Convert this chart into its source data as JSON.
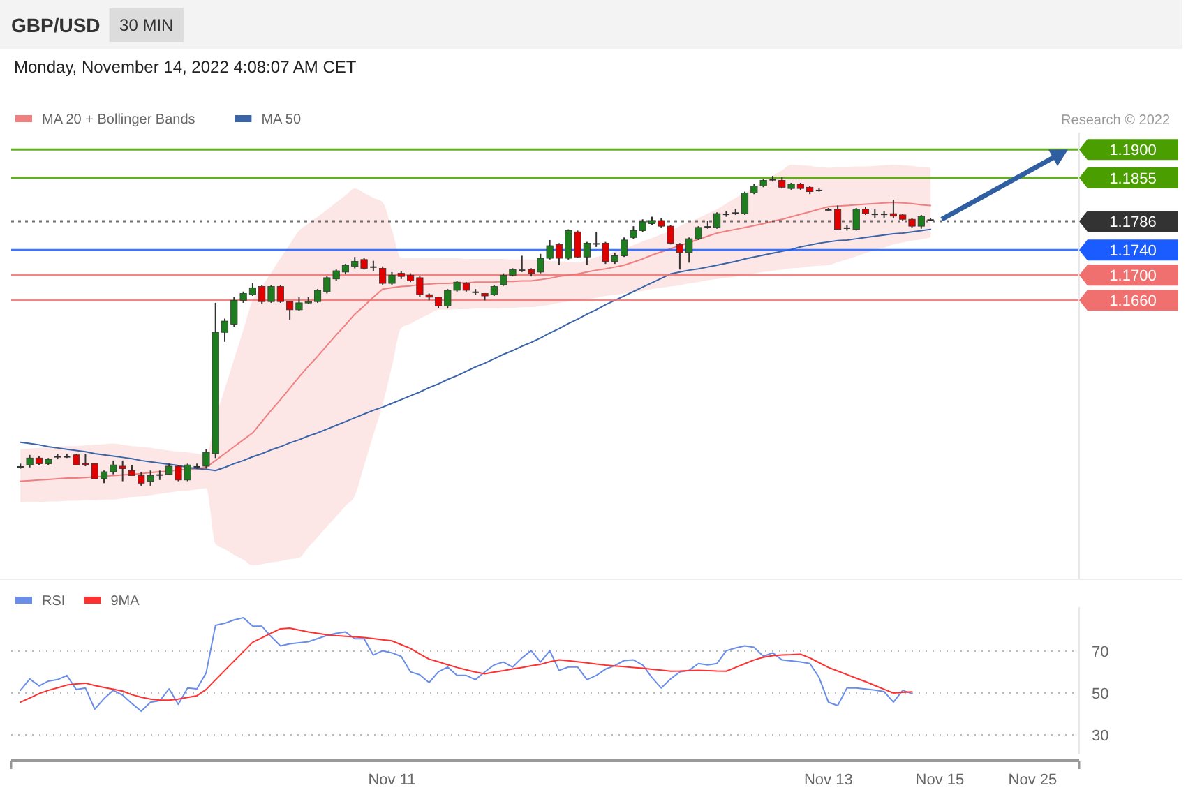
{
  "chart_data": [
    {
      "type": "candlestick",
      "title": "GBP/USD",
      "subtitle": "30 MIN",
      "annotations": [
        "Monday, November 14, 2022 4:08:07 AM CET",
        "Research © 2022"
      ],
      "legend": "top left",
      "tick_labels": "y",
      "ylim": [
        1.1216,
        1.1927
      ],
      "yticks": [
        {
          "value": 1.19,
          "label": "1.1900"
        },
        {
          "value": 1.1855,
          "label": "1.1855"
        },
        {
          "value": 1.1786,
          "label": "1.1786"
        },
        {
          "value": 1.174,
          "label": "1.1740"
        },
        {
          "value": 1.17,
          "label": "1.1700"
        },
        {
          "value": 1.166,
          "label": "1.1660"
        }
      ],
      "categories": [
        null,
        null,
        null,
        null,
        null,
        null,
        null,
        null,
        null,
        null,
        null,
        null,
        null,
        null,
        null,
        null,
        null,
        null,
        null,
        null,
        null,
        null,
        null,
        null,
        null,
        null,
        null,
        null,
        null,
        null,
        null,
        null,
        null,
        null,
        null,
        null,
        null,
        null,
        null,
        null,
        null,
        null,
        null,
        null,
        null,
        null,
        null,
        null,
        null,
        null,
        null,
        null,
        null,
        null,
        null,
        null,
        null,
        null,
        null,
        null,
        null,
        null,
        null,
        null,
        null,
        null,
        null,
        null,
        null,
        null,
        null,
        null,
        null,
        null,
        null,
        null,
        null,
        null,
        null,
        null,
        null,
        null,
        null,
        null,
        null,
        null,
        null,
        null,
        null,
        null,
        null,
        null,
        null,
        null,
        null,
        null,
        null,
        null,
        null
      ],
      "ohlc": [
        [
          1.1396,
          1.14,
          1.1392,
          1.1396
        ],
        [
          1.1398,
          1.1414,
          1.1394,
          1.1409
        ],
        [
          1.1409,
          1.1412,
          1.1398,
          1.14
        ],
        [
          1.14,
          1.1409,
          1.1398,
          1.1407
        ],
        [
          1.1412,
          1.1416,
          1.1407,
          1.1412
        ],
        [
          1.1412,
          1.1416,
          1.1409,
          1.1412
        ],
        [
          1.1414,
          1.1416,
          1.1398,
          1.1398
        ],
        [
          1.14,
          1.1416,
          1.1396,
          1.1398
        ],
        [
          1.14,
          1.14,
          1.1376,
          1.1376
        ],
        [
          1.1376,
          1.1389,
          1.1369,
          1.1387
        ],
        [
          1.1387,
          1.1405,
          1.1383,
          1.1398
        ],
        [
          1.1396,
          1.1405,
          1.1372,
          1.1392
        ],
        [
          1.1389,
          1.1398,
          1.1381,
          1.1381
        ],
        [
          1.1381,
          1.1387,
          1.1365,
          1.1369
        ],
        [
          1.1372,
          1.1389,
          1.1365,
          1.1381
        ],
        [
          1.1383,
          1.1389,
          1.1374,
          1.1383
        ],
        [
          1.1383,
          1.14,
          1.1383,
          1.1396
        ],
        [
          1.1396,
          1.1398,
          1.1372,
          1.1374
        ],
        [
          1.1374,
          1.14,
          1.1372,
          1.1398
        ],
        [
          1.1396,
          1.14,
          1.1392,
          1.1396
        ],
        [
          1.1396,
          1.1423,
          1.1392,
          1.1418
        ],
        [
          1.1416,
          1.1656,
          1.1409,
          1.1609
        ],
        [
          1.1609,
          1.1631,
          1.1594,
          1.1627
        ],
        [
          1.1622,
          1.1665,
          1.1618,
          1.166
        ],
        [
          1.166,
          1.1674,
          1.1656,
          1.1671
        ],
        [
          1.1669,
          1.1687,
          1.1667,
          1.168
        ],
        [
          1.1682,
          1.1684,
          1.1654,
          1.1658
        ],
        [
          1.1658,
          1.1684,
          1.1656,
          1.1682
        ],
        [
          1.1682,
          1.1684,
          1.1656,
          1.1658
        ],
        [
          1.1658,
          1.1658,
          1.1629,
          1.1645
        ],
        [
          1.1645,
          1.1665,
          1.1643,
          1.1656
        ],
        [
          1.1656,
          1.1665,
          1.1654,
          1.1658
        ],
        [
          1.1658,
          1.1678,
          1.1656,
          1.1676
        ],
        [
          1.1674,
          1.1698,
          1.1671,
          1.1696
        ],
        [
          1.1694,
          1.1709,
          1.1691,
          1.1707
        ],
        [
          1.1705,
          1.1718,
          1.1702,
          1.1716
        ],
        [
          1.1714,
          1.1729,
          1.1711,
          1.1722
        ],
        [
          1.1725,
          1.1727,
          1.1709,
          1.1711
        ],
        [
          1.1714,
          1.1723,
          1.1707,
          1.1714
        ],
        [
          1.1711,
          1.1714,
          1.1685,
          1.1687
        ],
        [
          1.1687,
          1.1705,
          1.1685,
          1.17
        ],
        [
          1.1703,
          1.1707,
          1.1694,
          1.1698
        ],
        [
          1.17,
          1.1703,
          1.1689,
          1.1691
        ],
        [
          1.1696,
          1.1698,
          1.1665,
          1.1669
        ],
        [
          1.1669,
          1.1671,
          1.166,
          1.1665
        ],
        [
          1.1665,
          1.1665,
          1.1647,
          1.1651
        ],
        [
          1.1651,
          1.1678,
          1.1647,
          1.1676
        ],
        [
          1.1676,
          1.1691,
          1.1674,
          1.1689
        ],
        [
          1.1687,
          1.1689,
          1.1674,
          1.1676
        ],
        [
          1.1674,
          1.1678,
          1.1669,
          1.1674
        ],
        [
          1.1671,
          1.1671,
          1.166,
          1.1667
        ],
        [
          1.1669,
          1.1684,
          1.1667,
          1.1682
        ],
        [
          1.1685,
          1.1703,
          1.1683,
          1.17
        ],
        [
          1.17,
          1.1711,
          1.1698,
          1.1709
        ],
        [
          1.1709,
          1.1731,
          1.1705,
          1.1709
        ],
        [
          1.1709,
          1.1711,
          1.1698,
          1.1703
        ],
        [
          1.1705,
          1.1734,
          1.1703,
          1.1727
        ],
        [
          1.1727,
          1.1756,
          1.1725,
          1.1747
        ],
        [
          1.1749,
          1.1751,
          1.1716,
          1.1727
        ],
        [
          1.1727,
          1.1773,
          1.1725,
          1.1771
        ],
        [
          1.1769,
          1.1771,
          1.1727,
          1.1729
        ],
        [
          1.1729,
          1.1753,
          1.1716,
          1.1751
        ],
        [
          1.1751,
          1.1769,
          1.1745,
          1.1751
        ],
        [
          1.1751,
          1.1753,
          1.1718,
          1.1722
        ],
        [
          1.1722,
          1.1736,
          1.1718,
          1.1731
        ],
        [
          1.1731,
          1.176,
          1.1729,
          1.1756
        ],
        [
          1.176,
          1.1778,
          1.1758,
          1.1771
        ],
        [
          1.1771,
          1.1789,
          1.1769,
          1.1785
        ],
        [
          1.1782,
          1.1793,
          1.178,
          1.1787
        ],
        [
          1.1787,
          1.1791,
          1.1776,
          1.1778
        ],
        [
          1.1778,
          1.178,
          1.1749,
          1.1751
        ],
        [
          1.1749,
          1.1751,
          1.1709,
          1.1736
        ],
        [
          1.1736,
          1.176,
          1.172,
          1.1758
        ],
        [
          1.1758,
          1.1778,
          1.1756,
          1.1776
        ],
        [
          1.1778,
          1.1787,
          1.1774,
          1.1778
        ],
        [
          1.1776,
          1.18,
          1.1774,
          1.1798
        ],
        [
          1.1798,
          1.1802,
          1.1793,
          1.1798
        ],
        [
          1.18,
          1.1805,
          1.1796,
          1.18
        ],
        [
          1.1798,
          1.1833,
          1.1796,
          1.1831
        ],
        [
          1.1831,
          1.1845,
          1.1829,
          1.1842
        ],
        [
          1.1842,
          1.1853,
          1.184,
          1.1851
        ],
        [
          1.1853,
          1.1858,
          1.1849,
          1.1853
        ],
        [
          1.1851,
          1.1856,
          1.1838,
          1.184
        ],
        [
          1.1838,
          1.1847,
          1.1836,
          1.1845
        ],
        [
          1.1845,
          1.1847,
          1.1836,
          1.1838
        ],
        [
          1.184,
          1.1842,
          1.1829,
          1.1833
        ],
        [
          1.1836,
          1.1838,
          1.1833,
          1.1836
        ],
        [
          1.1805,
          1.1807,
          1.1802,
          1.1805
        ],
        [
          1.1805,
          1.1811,
          1.1773,
          1.1773
        ],
        [
          1.1776,
          1.178,
          1.1771,
          1.1776
        ],
        [
          1.1773,
          1.1807,
          1.1771,
          1.1805
        ],
        [
          1.1805,
          1.1809,
          1.1796,
          1.1798
        ],
        [
          1.1798,
          1.1805,
          1.1791,
          1.1798
        ],
        [
          1.1798,
          1.1802,
          1.1791,
          1.1798
        ],
        [
          1.1798,
          1.182,
          1.1791,
          1.1794
        ],
        [
          1.1796,
          1.1798,
          1.1787,
          1.1789
        ],
        [
          1.1789,
          1.1791,
          1.1776,
          1.1778
        ],
        [
          1.1778,
          1.1796,
          1.1774,
          1.1794
        ],
        [
          1.1789,
          1.1791,
          1.1787,
          1.1789
        ]
      ],
      "series": [
        {
          "name": "MA 20 + Bollinger Bands",
          "type": "line",
          "color": "#f08080",
          "values": [
            1.1372,
            1.1373,
            1.1374,
            1.1375,
            1.1376,
            1.1377,
            1.1377,
            1.1378,
            1.1379,
            1.138,
            1.1381,
            1.1382,
            1.1383,
            1.1384,
            1.1386,
            1.1387,
            1.1388,
            1.139,
            1.1391,
            1.1392,
            1.1394,
            1.1405,
            1.1416,
            1.1427,
            1.1438,
            1.1449,
            1.1467,
            1.1485,
            1.1502,
            1.152,
            1.1538,
            1.1555,
            1.1571,
            1.1588,
            1.1605,
            1.1621,
            1.1638,
            1.1651,
            1.1665,
            1.1678,
            1.168,
            1.1682,
            1.1683,
            1.1685,
            1.1686,
            1.1687,
            1.1687,
            1.1688,
            1.1688,
            1.1689,
            1.1689,
            1.1689,
            1.169,
            1.169,
            1.1691,
            1.1691,
            1.1693,
            1.1695,
            1.1698,
            1.17,
            1.1702,
            1.1705,
            1.1708,
            1.171,
            1.1713,
            1.1716,
            1.1721,
            1.1726,
            1.1732,
            1.1737,
            1.1742,
            1.1747,
            1.1752,
            1.1757,
            1.1762,
            1.1767,
            1.177,
            1.1773,
            1.1776,
            1.1779,
            1.1782,
            1.1786,
            1.1789,
            1.1793,
            1.1797,
            1.1801,
            1.1805,
            1.1809,
            1.181,
            1.1811,
            1.1812,
            1.1813,
            1.1814,
            1.1815,
            1.1816,
            1.1815,
            1.1814,
            1.1812,
            1.1811
          ],
          "upper": [
            1.1423,
            1.1424,
            1.1425,
            1.1426,
            1.1427,
            1.1428,
            1.1428,
            1.1429,
            1.143,
            1.1431,
            1.1432,
            1.143,
            1.1428,
            1.1427,
            1.1425,
            1.1423,
            1.1421,
            1.1419,
            1.1418,
            1.1416,
            1.1414,
            1.1472,
            1.1519,
            1.1566,
            1.1613,
            1.166,
            1.1682,
            1.1704,
            1.1727,
            1.1749,
            1.1771,
            1.1782,
            1.1793,
            1.1804,
            1.1816,
            1.1827,
            1.1838,
            1.1831,
            1.1823,
            1.1816,
            1.1772,
            1.1727,
            1.1727,
            1.1727,
            1.1727,
            1.1727,
            1.1727,
            1.1727,
            1.1726,
            1.1726,
            1.1726,
            1.1726,
            1.1726,
            1.1725,
            1.1725,
            1.1725,
            1.1724,
            1.1723,
            1.1722,
            1.1721,
            1.172,
            1.1724,
            1.1729,
            1.1733,
            1.1738,
            1.1742,
            1.1748,
            1.1754,
            1.1759,
            1.1765,
            1.1771,
            1.1778,
            1.1785,
            1.1791,
            1.1798,
            1.1805,
            1.1814,
            1.1823,
            1.1831,
            1.184,
            1.1849,
            1.1858,
            1.1867,
            1.1876,
            1.1875,
            1.1874,
            1.1872,
            1.1871,
            1.1872,
            1.1872,
            1.1873,
            1.1873,
            1.1874,
            1.1875,
            1.1876,
            1.1875,
            1.1874,
            1.1872,
            1.1871
          ],
          "lower": [
            1.1338,
            1.1339,
            1.1339,
            1.134,
            1.134,
            1.1341,
            1.1341,
            1.1342,
            1.1342,
            1.1343,
            1.1343,
            1.1345,
            1.1347,
            1.1348,
            1.135,
            1.1352,
            1.1354,
            1.1356,
            1.1357,
            1.1359,
            1.1361,
            1.1272,
            1.1264,
            1.1255,
            1.1247,
            1.1238,
            1.124,
            1.1243,
            1.1245,
            1.1248,
            1.125,
            1.1267,
            1.1283,
            1.13,
            1.1316,
            1.1333,
            1.1349,
            1.1397,
            1.1446,
            1.1494,
            1.1555,
            1.1616,
            1.1623,
            1.1631,
            1.1638,
            1.1645,
            1.1645,
            1.1646,
            1.1646,
            1.1647,
            1.1647,
            1.1647,
            1.1648,
            1.1648,
            1.1649,
            1.1649,
            1.1651,
            1.1653,
            1.1656,
            1.1658,
            1.166,
            1.1662,
            1.1664,
            1.1667,
            1.1669,
            1.1671,
            1.1673,
            1.1675,
            1.1678,
            1.168,
            1.1682,
            1.1684,
            1.1687,
            1.1689,
            1.1692,
            1.1694,
            1.1696,
            1.1698,
            1.1701,
            1.1703,
            1.1705,
            1.1707,
            1.1709,
            1.1711,
            1.1712,
            1.1714,
            1.1715,
            1.1716,
            1.1721,
            1.1725,
            1.173,
            1.1735,
            1.174,
            1.1744,
            1.1749,
            1.1752,
            1.1755,
            1.1757,
            1.176
          ]
        },
        {
          "name": "MA 50",
          "type": "line",
          "color": "#3a64a8",
          "values": [
            1.1434,
            1.1432,
            1.143,
            1.1427,
            1.1425,
            1.1423,
            1.1421,
            1.1419,
            1.1416,
            1.1414,
            1.1412,
            1.141,
            1.1408,
            1.1405,
            1.1403,
            1.1401,
            1.1399,
            1.1397,
            1.1394,
            1.1392,
            1.1391,
            1.1389,
            1.1394,
            1.14,
            1.1405,
            1.1411,
            1.1416,
            1.1422,
            1.1427,
            1.1433,
            1.1438,
            1.1444,
            1.1449,
            1.1455,
            1.1461,
            1.1467,
            1.1473,
            1.1479,
            1.1485,
            1.149,
            1.1496,
            1.1502,
            1.1508,
            1.1514,
            1.1521,
            1.1527,
            1.1534,
            1.154,
            1.1547,
            1.1554,
            1.156,
            1.1567,
            1.1574,
            1.158,
            1.1587,
            1.1593,
            1.16,
            1.1608,
            1.1615,
            1.1623,
            1.163,
            1.1638,
            1.1645,
            1.1653,
            1.166,
            1.1667,
            1.1674,
            1.1681,
            1.1688,
            1.1695,
            1.1702,
            1.1705,
            1.1708,
            1.171,
            1.1713,
            1.1716,
            1.1719,
            1.1722,
            1.1726,
            1.1729,
            1.1732,
            1.1735,
            1.1738,
            1.1741,
            1.1745,
            1.1748,
            1.1751,
            1.1753,
            1.1755,
            1.1756,
            1.1758,
            1.176,
            1.1762,
            1.1764,
            1.1766,
            1.1767,
            1.1769,
            1.1771,
            1.1773
          ]
        }
      ],
      "ref_lines": [
        {
          "axis": "y",
          "value": 1.19,
          "color": "#4a9e00"
        },
        {
          "axis": "y",
          "value": 1.1855,
          "color": "#4a9e00"
        },
        {
          "axis": "y",
          "value": 1.1786,
          "color": "#333333",
          "line_style": "dotted"
        },
        {
          "axis": "y",
          "value": 1.174,
          "color": "#1a5cff"
        },
        {
          "axis": "y",
          "value": 1.17,
          "color": "#f07070"
        },
        {
          "axis": "y",
          "value": 1.166,
          "color": "#f07070"
        }
      ]
    },
    {
      "type": "line",
      "legend": "top left",
      "grid": "y",
      "ylim": [
        21,
        91
      ],
      "yticks": [
        30,
        50,
        70
      ],
      "categories": [
        null,
        null,
        null,
        null,
        null,
        null,
        null,
        null,
        null,
        null,
        null,
        null,
        null,
        null,
        null,
        null,
        null,
        null,
        null,
        null,
        null,
        null,
        null,
        null,
        null,
        null,
        null,
        null,
        null,
        null,
        null,
        null,
        null,
        null,
        null,
        null,
        null,
        null,
        null,
        null,
        "Nov 11",
        null,
        null,
        null,
        null,
        null,
        null,
        null,
        null,
        null,
        null,
        null,
        null,
        null,
        null,
        null,
        null,
        null,
        null,
        null,
        null,
        null,
        null,
        null,
        null,
        null,
        null,
        null,
        null,
        null,
        null,
        null,
        null,
        null,
        null,
        null,
        null,
        null,
        null,
        null,
        null,
        null,
        null,
        null,
        null,
        null,
        null,
        "Nov 13",
        null,
        null,
        null,
        null,
        null,
        null,
        null,
        null,
        null,
        null,
        null,
        "Nov 15",
        null,
        null,
        null,
        null,
        null,
        null,
        null,
        null,
        null,
        "Nov 25",
        null,
        null,
        null,
        null
      ],
      "series": [
        {
          "name": "RSI",
          "color": "#6a8ee8",
          "values": [
            51.3,
            56.7,
            53.4,
            55.7,
            56.4,
            58.4,
            51.7,
            52.4,
            42.3,
            47.3,
            51.3,
            49.0,
            45.0,
            41.3,
            45.6,
            46.3,
            52.0,
            44.6,
            52.4,
            52.0,
            59.7,
            82.3,
            83.3,
            84.9,
            86.0,
            82.0,
            81.9,
            76.9,
            72.5,
            73.5,
            74.0,
            74.5,
            76.0,
            77.5,
            78.5,
            79.2,
            75.9,
            75.9,
            68.1,
            70.2,
            69.2,
            67.5,
            60.1,
            58.7,
            55.0,
            60.1,
            62.4,
            58.4,
            58.4,
            56.4,
            60.1,
            63.4,
            64.8,
            62.4,
            66.8,
            70.2,
            64.8,
            70.2,
            60.8,
            62.4,
            62.4,
            56.4,
            58.4,
            61.4,
            63.1,
            65.5,
            65.8,
            63.4,
            57.4,
            52.4,
            56.7,
            60.1,
            60.8,
            64.1,
            63.4,
            64.1,
            70.2,
            71.5,
            72.5,
            71.8,
            67.5,
            69.2,
            65.8,
            65.3,
            64.8,
            64.1,
            57.4,
            45.6,
            44.0,
            52.4,
            52.4,
            51.9,
            51.4,
            50.7,
            45.6,
            51.3,
            49.7,
            null,
            null,
            null,
            null,
            null,
            null,
            null,
            null,
            null,
            null,
            null,
            null,
            null,
            null,
            null,
            null,
            null
          ]
        },
        {
          "name": "9MA",
          "color": "#ff3030",
          "values": [
            45.6,
            47.6,
            49.7,
            51.3,
            52.5,
            53.8,
            54.3,
            54.7,
            53.6,
            52.7,
            51.8,
            50.9,
            49.2,
            48.0,
            47.1,
            46.6,
            46.6,
            47.1,
            47.9,
            48.7,
            51.7,
            56.3,
            60.8,
            65.3,
            69.7,
            74.2,
            76.4,
            78.6,
            80.7,
            81.0,
            80.1,
            79.2,
            78.5,
            77.8,
            77.4,
            77.1,
            76.8,
            76.5,
            76.0,
            75.4,
            74.9,
            73.1,
            71.3,
            68.6,
            66.2,
            64.9,
            63.5,
            62.2,
            61.1,
            60.0,
            59.2,
            60.0,
            60.7,
            61.5,
            62.2,
            63.0,
            63.7,
            64.9,
            65.8,
            65.4,
            64.9,
            64.4,
            63.8,
            63.3,
            62.9,
            62.6,
            62.2,
            61.8,
            61.3,
            60.9,
            60.4,
            60.5,
            60.7,
            60.8,
            60.7,
            60.5,
            60.4,
            62.2,
            64.0,
            65.8,
            67.1,
            67.8,
            68.2,
            68.3,
            68.5,
            66.8,
            64.5,
            62.2,
            60.5,
            58.8,
            57.1,
            55.4,
            53.6,
            51.8,
            50.0,
            50.3,
            50.6,
            null,
            null,
            null,
            null,
            null,
            null,
            null,
            null,
            null,
            null,
            null,
            null,
            null,
            null,
            null,
            null,
            null
          ]
        }
      ]
    }
  ]
}
